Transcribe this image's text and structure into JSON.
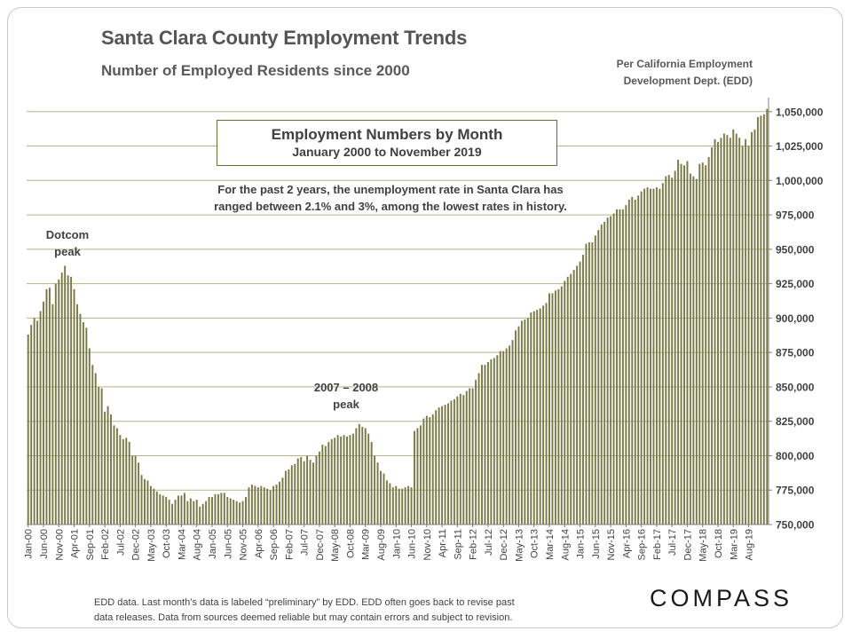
{
  "header": {
    "title": "Santa Clara County Employment Trends",
    "subtitle": "Number of Employed Residents since 2000",
    "source_line1": "Per California Employment",
    "source_line2": "Development Dept. (EDD)"
  },
  "callout": {
    "title": "Employment Numbers by Month",
    "subtitle": "January 2000 to November 2019"
  },
  "note": {
    "line1": "For the past 2 years, the unemployment rate in Santa Clara has",
    "line2": "ranged between 2.1% and 3%, among the lowest rates in history."
  },
  "annotations": {
    "dotcom_line1": "Dotcom",
    "dotcom_line2": "peak",
    "peak08_line1": "2007 – 2008",
    "peak08_line2": "peak"
  },
  "footer": {
    "line1": "EDD data. Last month’s data is labeled “preliminary” by EDD. EDD often goes back to revise past",
    "line2": "data releases. Data from sources deemed reliable but may contain errors and subject to revision."
  },
  "logo": {
    "text": "COMPASS"
  },
  "colors": {
    "bar": "#7a7a48",
    "grid": "#b5b58c",
    "text": "#404040"
  },
  "chart_data": {
    "type": "bar",
    "title": "Santa Clara County Employment Trends",
    "xlabel": "",
    "ylabel": "",
    "ylim": [
      750000,
      1055000
    ],
    "y_ticks": [
      750000,
      775000,
      800000,
      825000,
      850000,
      875000,
      900000,
      925000,
      950000,
      975000,
      1000000,
      1025000,
      1050000
    ],
    "y_tick_labels": [
      "750,000",
      "775,000",
      "800,000",
      "825,000",
      "850,000",
      "875,000",
      "900,000",
      "925,000",
      "950,000",
      "975,000",
      "1,000,000",
      "1,025,000",
      "1,050,000"
    ],
    "x_tick_labels": [
      "Jan-00",
      "Jun-00",
      "Nov-00",
      "Apr-01",
      "Sep-01",
      "Feb-02",
      "Jul-02",
      "Dec-02",
      "May-03",
      "Oct-03",
      "Mar-04",
      "Aug-04",
      "Jan-05",
      "Jun-05",
      "Nov-05",
      "Apr-06",
      "Sep-06",
      "Feb-07",
      "Jul-07",
      "Dec-07",
      "May-08",
      "Oct-08",
      "Mar-09",
      "Aug-09",
      "Jan-10",
      "Jun-10",
      "Nov-10",
      "Apr-11",
      "Sep-11",
      "Feb-12",
      "Jul-12",
      "Dec-12",
      "May-13",
      "Oct-13",
      "Mar-14",
      "Aug-14",
      "Jan-15",
      "Jun-15",
      "Nov-15",
      "Apr-16",
      "Sep-16",
      "Feb-17",
      "Jul-17",
      "Dec-17",
      "May-18",
      "Oct-18",
      "Mar-19",
      "Aug-19"
    ],
    "series": [
      {
        "name": "Employed Residents",
        "start": "Jan-00",
        "values": [
          888000,
          895000,
          900000,
          898000,
          905000,
          912000,
          921000,
          922000,
          910000,
          925000,
          928000,
          933000,
          938000,
          931000,
          930000,
          921000,
          910000,
          903000,
          897000,
          893000,
          878000,
          866000,
          860000,
          850000,
          849000,
          832000,
          836000,
          830000,
          822000,
          820000,
          815000,
          812000,
          813000,
          810000,
          800000,
          800000,
          795000,
          786000,
          783000,
          782000,
          778000,
          776000,
          774000,
          772000,
          771000,
          770000,
          768000,
          765000,
          768000,
          771000,
          771000,
          773000,
          767000,
          769000,
          767000,
          768000,
          763000,
          765000,
          767000,
          770000,
          770000,
          772000,
          772000,
          773000,
          773000,
          770000,
          769000,
          768000,
          767000,
          766000,
          767000,
          770000,
          777000,
          779000,
          778000,
          777000,
          778000,
          777000,
          776000,
          775000,
          778000,
          779000,
          781000,
          784000,
          789000,
          790000,
          793000,
          794000,
          798000,
          799000,
          796000,
          800000,
          797000,
          795000,
          800000,
          803000,
          808000,
          807000,
          810000,
          812000,
          813000,
          815000,
          814000,
          815000,
          814000,
          815000,
          816000,
          820000,
          823000,
          821000,
          820000,
          816000,
          810000,
          800000,
          795000,
          789000,
          787000,
          782000,
          780000,
          777000,
          778000,
          776000,
          776000,
          777000,
          778000,
          777000,
          818000,
          820000,
          822000,
          827000,
          829000,
          828000,
          830000,
          833000,
          835000,
          836000,
          837000,
          838000,
          840000,
          841000,
          843000,
          845000,
          844000,
          847000,
          849000,
          849000,
          855000,
          860000,
          866000,
          866000,
          868000,
          870000,
          871000,
          873000,
          876000,
          876000,
          878000,
          880000,
          884000,
          891000,
          894000,
          898000,
          899000,
          900000,
          904000,
          905000,
          906000,
          907000,
          909000,
          911000,
          918000,
          918000,
          920000,
          921000,
          923000,
          927000,
          930000,
          932000,
          935000,
          938000,
          941000,
          946000,
          954000,
          955000,
          955000,
          960000,
          964000,
          968000,
          970000,
          973000,
          974000,
          976000,
          979000,
          979000,
          979000,
          982000,
          986000,
          988000,
          986000,
          989000,
          992000,
          994000,
          995000,
          994000,
          994000,
          995000,
          994000,
          998000,
          1003000,
          1004000,
          1002000,
          1007000,
          1015000,
          1012000,
          1011000,
          1014000,
          1005000,
          1003000,
          1001000,
          1012000,
          1013000,
          1011000,
          1017000,
          1024000,
          1030000,
          1028000,
          1031000,
          1034000,
          1033000,
          1031000,
          1037000,
          1034000,
          1031000,
          1025000,
          1030000,
          1025000,
          1035000,
          1037000,
          1046000,
          1047000,
          1048000,
          1052000
        ]
      }
    ]
  }
}
